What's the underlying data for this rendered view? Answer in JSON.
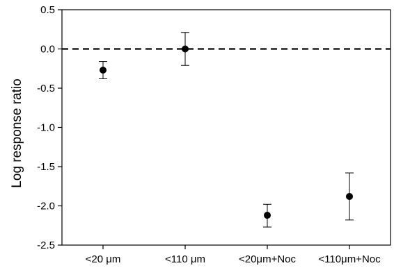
{
  "chart_data": {
    "type": "scatter",
    "title": "",
    "xlabel": "",
    "ylabel": "Log response ratio",
    "categories": [
      "<20 μm",
      "<110 μm",
      "<20μm+Noc",
      "<110μm+Noc"
    ],
    "series": [
      {
        "values": [
          -0.27,
          0.0,
          -2.12,
          -1.88
        ],
        "error_low": [
          -0.38,
          -0.21,
          -2.27,
          -2.18
        ],
        "error_high": [
          -0.16,
          0.21,
          -1.98,
          -1.58
        ]
      }
    ],
    "ylim": [
      -2.5,
      0.5
    ],
    "yticks": [
      "0.5",
      "0.0",
      "-0.5",
      "-1.0",
      "-1.5",
      "-2.0",
      "-2.5"
    ],
    "ytick_values": [
      0.5,
      0.0,
      -0.5,
      -1.0,
      -1.5,
      -2.0,
      -2.5
    ],
    "reference_line": {
      "y": 0.0,
      "style": "dashed"
    },
    "grid": false,
    "legend": "none",
    "colors": {
      "marker": "#000000",
      "axis": "#000000"
    }
  }
}
